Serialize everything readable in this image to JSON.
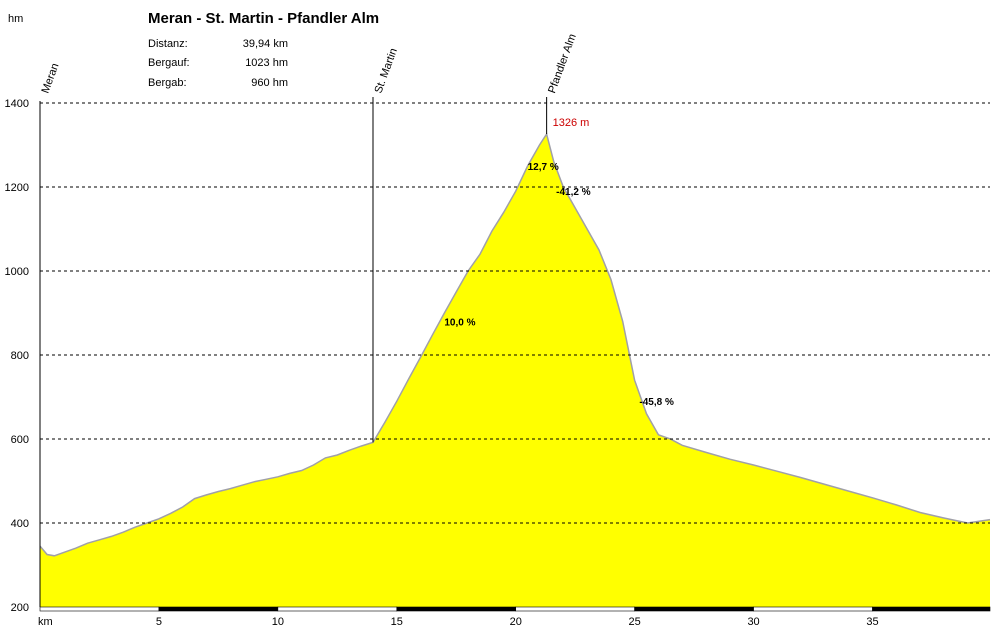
{
  "chart_data": {
    "type": "area",
    "title": "Meran - St. Martin - Pfandler Alm",
    "stats": [
      {
        "label": "Distanz:",
        "value": "39,94 km"
      },
      {
        "label": "Bergauf:",
        "value": "1023 hm"
      },
      {
        "label": "Bergab:",
        "value": "960 hm"
      }
    ],
    "ylabel": "hm",
    "xlabel": "km",
    "ylim": [
      200,
      1400
    ],
    "xlim": [
      0,
      39.94
    ],
    "y_ticks": [
      200,
      400,
      600,
      800,
      1000,
      1200,
      1400
    ],
    "x_ticks": [
      5,
      10,
      15,
      20,
      25,
      30,
      35
    ],
    "grid": true,
    "fill_color": "#ffff00",
    "line_color": "#a0a0a8",
    "series": [
      {
        "x": [
          0,
          0.3,
          0.6,
          1,
          1.5,
          2,
          2.5,
          3,
          3.5,
          4,
          4.5,
          5,
          5.5,
          6,
          6.5,
          7,
          7.5,
          8,
          8.5,
          9,
          9.5,
          10,
          10.5,
          11,
          11.5,
          12,
          12.5,
          13,
          13.5,
          14,
          14.5,
          15,
          15.5,
          16,
          16.5,
          17,
          17.5,
          18,
          18.5,
          19,
          19.5,
          20,
          20.5,
          21,
          21.3,
          21.6,
          22,
          22.5,
          23,
          23.5,
          24,
          24.5,
          25,
          25.5,
          26,
          26.5,
          27,
          28,
          29,
          30,
          31,
          32,
          33,
          34,
          35,
          36,
          37,
          38,
          39,
          39.94
        ],
        "y": [
          345,
          325,
          322,
          330,
          340,
          352,
          360,
          368,
          378,
          390,
          400,
          410,
          423,
          438,
          458,
          467,
          475,
          482,
          490,
          498,
          504,
          510,
          518,
          525,
          538,
          555,
          562,
          573,
          583,
          592,
          640,
          690,
          743,
          795,
          848,
          900,
          950,
          1000,
          1040,
          1095,
          1140,
          1190,
          1250,
          1300,
          1326,
          1260,
          1200,
          1150,
          1100,
          1050,
          980,
          880,
          740,
          660,
          610,
          600,
          585,
          568,
          552,
          538,
          523,
          508,
          492,
          476,
          460,
          443,
          425,
          412,
          400,
          408
        ]
      }
    ],
    "waypoints": [
      {
        "name": "Meran",
        "km": 0
      },
      {
        "name": "St. Martin",
        "km": 14
      },
      {
        "name": "Pfandler Alm",
        "km": 21.3
      }
    ],
    "annotations": [
      {
        "text": "1326 m",
        "x": 21.3,
        "y": 1326
      },
      {
        "text": "12,7 %",
        "x": 20.5,
        "y": 1250
      },
      {
        "text": "-41,2 %",
        "x": 21.7,
        "y": 1190
      },
      {
        "text": "10,0 %",
        "x": 17,
        "y": 880
      },
      {
        "text": "-45,8 %",
        "x": 25.2,
        "y": 690
      }
    ]
  }
}
